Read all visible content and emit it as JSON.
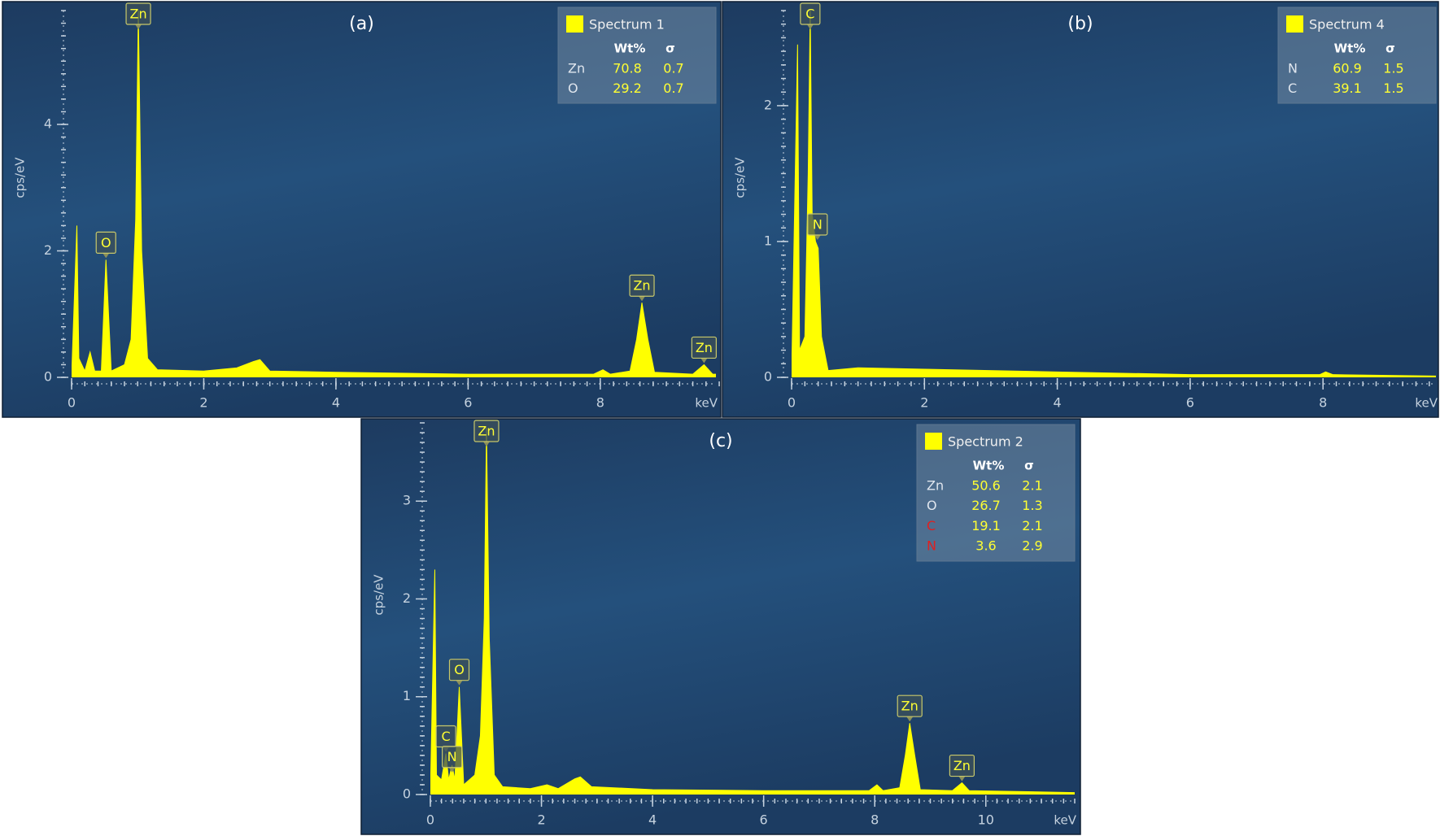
{
  "chart_data": [
    {
      "type": "area",
      "title": "(a)",
      "ylabel": "cps/eV",
      "xlabel": "keV",
      "x": [
        0,
        0.08,
        0.11,
        0.2,
        0.28,
        0.35,
        0.45,
        0.52,
        0.6,
        0.8,
        0.9,
        0.97,
        1.01,
        1.06,
        1.15,
        1.3,
        2,
        2.5,
        2.75,
        2.85,
        3,
        4,
        6,
        7.9,
        8.04,
        8.15,
        8.45,
        8.55,
        8.63,
        8.72,
        8.82,
        9.4,
        9.57,
        9.7,
        9.75
      ],
      "series": [
        {
          "name": "Spectrum 1",
          "color": "#ffff00",
          "values": [
            0,
            2.4,
            0.3,
            0.1,
            0.4,
            0.1,
            0.1,
            1.86,
            0.1,
            0.2,
            0.6,
            2.5,
            5.8,
            2,
            0.3,
            0.12,
            0.1,
            0.15,
            0.25,
            0.28,
            0.1,
            0.08,
            0.05,
            0.05,
            0.12,
            0.05,
            0.1,
            0.6,
            1.18,
            0.6,
            0.08,
            0.05,
            0.2,
            0.05,
            0.05
          ]
        }
      ],
      "xlim": [
        0,
        9.75
      ],
      "xticks": [
        0,
        2,
        4,
        6,
        8
      ],
      "minor_xstep": 0.2,
      "ylim": [
        0,
        5.8
      ],
      "yticks": [
        0,
        2,
        4
      ],
      "minor_ystep": 0.2,
      "annotations": [
        {
          "text": "O",
          "x": 0.52,
          "y": 1.86
        },
        {
          "text": "Zn",
          "x": 1.01,
          "y": 5.8
        },
        {
          "text": "Zn",
          "x": 8.63,
          "y": 1.18
        },
        {
          "text": "Zn",
          "x": 9.57,
          "y": 0.2
        }
      ],
      "legend_table": {
        "columns": [
          "Wt%",
          "σ"
        ],
        "rows": [
          [
            "Zn",
            70.8,
            0.7
          ],
          [
            "O",
            29.2,
            0.7
          ]
        ],
        "row_colors": [
          "#e0e6ee",
          "#e0e6ee"
        ]
      }
    },
    {
      "type": "area",
      "title": "(b)",
      "ylabel": "cps/eV",
      "xlabel": "keV",
      "x": [
        0,
        0.09,
        0.12,
        0.2,
        0.25,
        0.28,
        0.31,
        0.36,
        0.4,
        0.45,
        0.55,
        1,
        2,
        4,
        6,
        7.95,
        8.04,
        8.15,
        9.7
      ],
      "series": [
        {
          "name": "Spectrum 4",
          "color": "#ffff00",
          "values": [
            0,
            2.45,
            0.2,
            0.3,
            1.5,
            2.7,
            1.2,
            1,
            0.95,
            0.3,
            0.05,
            0.07,
            0.06,
            0.04,
            0.02,
            0.02,
            0.04,
            0.02,
            0.01
          ]
        }
      ],
      "xlim": [
        0,
        9.7
      ],
      "xticks": [
        0,
        2,
        4,
        6,
        8
      ],
      "minor_xstep": 0.2,
      "ylim": [
        0,
        2.7
      ],
      "yticks": [
        0,
        1,
        2
      ],
      "minor_ystep": 0.1,
      "annotations": [
        {
          "text": "C",
          "x": 0.28,
          "y": 2.7
        },
        {
          "text": "N",
          "x": 0.39,
          "y": 1.0
        }
      ],
      "legend_table": {
        "columns": [
          "Wt%",
          "σ"
        ],
        "rows": [
          [
            "N",
            60.9,
            1.5
          ],
          [
            "C",
            39.1,
            1.5
          ]
        ],
        "row_colors": [
          "#e0e6ee",
          "#e0e6ee"
        ]
      }
    },
    {
      "type": "area",
      "title": "(c)",
      "ylabel": "cps/eV",
      "xlabel": "keV",
      "x": [
        0,
        0.08,
        0.11,
        0.2,
        0.28,
        0.33,
        0.39,
        0.44,
        0.52,
        0.6,
        0.8,
        0.9,
        0.97,
        1.01,
        1.06,
        1.15,
        1.3,
        1.8,
        2.1,
        2.3,
        2.6,
        2.7,
        2.9,
        4,
        6,
        7.9,
        8.04,
        8.15,
        8.45,
        8.55,
        8.63,
        8.72,
        8.82,
        9.4,
        9.57,
        9.7,
        11.6
      ],
      "series": [
        {
          "name": "Spectrum 2",
          "color": "#ffff00",
          "values": [
            0,
            2.3,
            0.2,
            0.15,
            0.42,
            0.15,
            0.3,
            0.15,
            1.1,
            0.1,
            0.2,
            0.6,
            1.8,
            3.75,
            1.6,
            0.2,
            0.08,
            0.06,
            0.1,
            0.06,
            0.16,
            0.18,
            0.08,
            0.05,
            0.04,
            0.04,
            0.1,
            0.04,
            0.07,
            0.4,
            0.73,
            0.4,
            0.05,
            0.04,
            0.12,
            0.04,
            0.02
          ]
        }
      ],
      "xlim": [
        0,
        11.6
      ],
      "xticks": [
        0,
        2,
        4,
        6,
        8,
        10
      ],
      "minor_xstep": 0.2,
      "ylim": [
        0,
        3.75
      ],
      "yticks": [
        0,
        1,
        2,
        3
      ],
      "minor_ystep": 0.1,
      "annotations": [
        {
          "text": "Zn",
          "x": 1.01,
          "y": 3.75
        },
        {
          "text": "O",
          "x": 0.52,
          "y": 1.1
        },
        {
          "text": "C",
          "x": 0.28,
          "y": 0.42
        },
        {
          "text": "N",
          "x": 0.39,
          "y": 0.21
        },
        {
          "text": "Zn",
          "x": 8.63,
          "y": 0.73
        },
        {
          "text": "Zn",
          "x": 9.57,
          "y": 0.12
        }
      ],
      "legend_table": {
        "columns": [
          "Wt%",
          "σ"
        ],
        "rows": [
          [
            "Zn",
            50.6,
            2.1
          ],
          [
            "O",
            26.7,
            1.3
          ],
          [
            "C",
            19.1,
            2.1
          ],
          [
            "N",
            3.6,
            2.9
          ]
        ],
        "row_colors": [
          "#e0e6ee",
          "#e0e6ee",
          "#e02020",
          "#e02020"
        ]
      }
    }
  ]
}
